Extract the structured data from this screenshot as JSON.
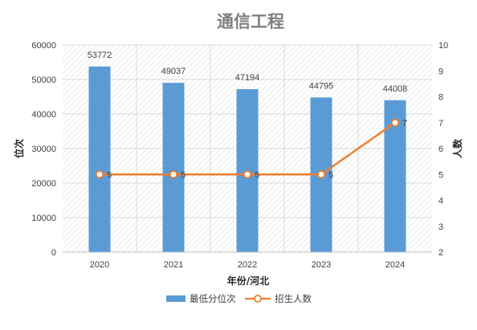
{
  "chart_data": {
    "type": "bar",
    "title": "通信工程",
    "xlabel": "年份/河北",
    "ylabel": "位次",
    "y2label": "人数",
    "categories": [
      "2020",
      "2021",
      "2022",
      "2023",
      "2024"
    ],
    "ylim": [
      0,
      60000
    ],
    "yticks": [
      0,
      10000,
      20000,
      30000,
      40000,
      50000,
      60000
    ],
    "y2lim": [
      2,
      10
    ],
    "y2ticks": [
      2,
      3,
      4,
      5,
      6,
      7,
      8,
      9,
      10
    ],
    "legend_position": "bottom",
    "grid": true,
    "series": [
      {
        "name": "最低分位次",
        "kind": "bar",
        "axis": "left",
        "color": "#5b9bd5",
        "values": [
          53772,
          49037,
          47194,
          44795,
          44008
        ]
      },
      {
        "name": "招生人数",
        "kind": "line",
        "axis": "right",
        "color": "#ed7d31",
        "values": [
          5,
          5,
          5,
          5,
          7
        ]
      }
    ]
  }
}
